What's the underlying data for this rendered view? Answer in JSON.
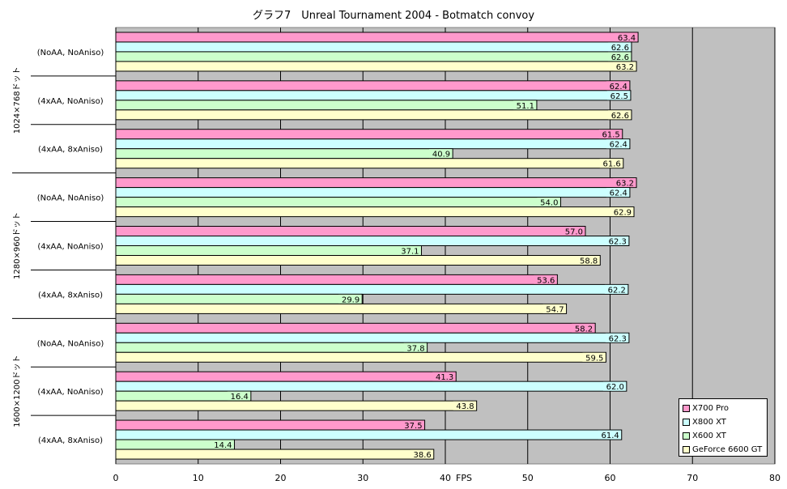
{
  "chart_data": {
    "type": "bar",
    "orientation": "horizontal",
    "title": "グラフ7　Unreal Tournament 2004 - Botmatch convoy",
    "xlabel": "FPS",
    "xlim": [
      0,
      80
    ],
    "xticks": [
      0,
      10,
      20,
      30,
      40,
      50,
      60,
      70,
      80
    ],
    "resolution_groups": [
      "1024×768ドット",
      "1280×960ドット",
      "1600×1200ドット"
    ],
    "settings": [
      "(NoAA, NoAniso)",
      "(4xAA, NoAniso)",
      "(4xAA, 8xAniso)"
    ],
    "legend_position": "bottom-right",
    "series": [
      {
        "name": "X700 Pro",
        "color": "#ff99cc",
        "values": [
          63.4,
          62.4,
          61.5,
          63.2,
          57.0,
          53.6,
          58.2,
          41.3,
          37.5
        ]
      },
      {
        "name": "X800 XT",
        "color": "#ccffff",
        "values": [
          62.6,
          62.5,
          62.4,
          62.4,
          62.3,
          62.2,
          62.3,
          62.0,
          61.4
        ]
      },
      {
        "name": "X600 XT",
        "color": "#ccffcc",
        "values": [
          62.6,
          51.1,
          40.9,
          54.0,
          37.1,
          29.9,
          37.8,
          16.4,
          14.4
        ]
      },
      {
        "name": "GeForce 6600 GT",
        "color": "#ffffcc",
        "values": [
          63.2,
          62.6,
          61.6,
          62.9,
          58.8,
          54.7,
          59.5,
          43.8,
          38.6
        ]
      }
    ],
    "colors": {
      "plot_background": "#c0c0c0",
      "gridline": "#000000",
      "bar_border": "#000000"
    }
  }
}
